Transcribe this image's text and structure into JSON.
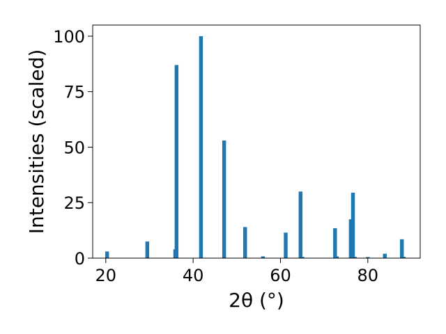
{
  "chart_data": {
    "type": "bar",
    "xlabel": "2θ (°)",
    "ylabel": "Intensities (scaled)",
    "xlim": [
      17,
      92
    ],
    "ylim": [
      0,
      105
    ],
    "xticks": [
      20,
      40,
      60,
      80
    ],
    "yticks": [
      0,
      25,
      50,
      75,
      100
    ],
    "grid": false,
    "legend": "none",
    "color": "#1f77b4",
    "bars": [
      {
        "x": 20.3,
        "y": 3
      },
      {
        "x": 29.5,
        "y": 7.5
      },
      {
        "x": 35.9,
        "y": 4
      },
      {
        "x": 36.2,
        "y": 87
      },
      {
        "x": 41.8,
        "y": 100
      },
      {
        "x": 47.1,
        "y": 53
      },
      {
        "x": 51.9,
        "y": 14
      },
      {
        "x": 56.0,
        "y": 0.8
      },
      {
        "x": 61.2,
        "y": 11.5
      },
      {
        "x": 64.6,
        "y": 30
      },
      {
        "x": 65.0,
        "y": 0.6
      },
      {
        "x": 72.5,
        "y": 13.5
      },
      {
        "x": 72.9,
        "y": 0.8
      },
      {
        "x": 76.1,
        "y": 17.5
      },
      {
        "x": 76.6,
        "y": 29.5
      },
      {
        "x": 77.0,
        "y": 0.6
      },
      {
        "x": 80.0,
        "y": 0.5
      },
      {
        "x": 83.9,
        "y": 2
      },
      {
        "x": 87.8,
        "y": 8.5
      },
      {
        "x": 88.2,
        "y": 0.6
      }
    ]
  }
}
